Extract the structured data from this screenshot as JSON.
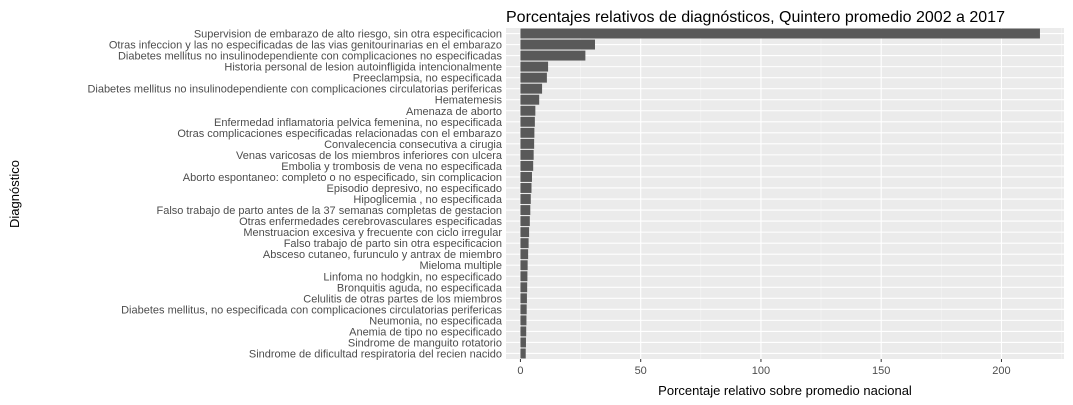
{
  "chart_data": {
    "type": "bar",
    "orientation": "horizontal",
    "title": "Porcentajes relativos de diagnósticos, Quintero promedio 2002 a 2017",
    "xlabel": "Porcentaje relativo sobre promedio nacional",
    "ylabel": "Diagnóstico",
    "xlim": [
      -6,
      226
    ],
    "xticks": [
      0,
      50,
      100,
      150,
      200
    ],
    "grid": true,
    "colors": {
      "bar": "#595959",
      "panel": "#ebebeb",
      "grid_major": "#ffffff",
      "grid_minor": "#f5f5f5"
    },
    "categories": [
      "Supervision de embarazo de alto riesgo, sin otra especificacion",
      "Otras infeccion y las no especificadas de las vias genitourinarias en el embarazo",
      "Diabetes mellitus no insulinodependiente con complicaciones no especificadas",
      "Historia personal de lesion autoinfligida intencionalmente",
      "Preeclampsia, no especificada",
      "Diabetes mellitus no insulinodependiente con complicaciones circulatorias perifericas",
      "Hematemesis",
      "Amenaza de aborto",
      "Enfermedad inflamatoria pelvica femenina, no especificada",
      "Otras complicaciones especificadas relacionadas con el embarazo",
      "Convalecencia consecutiva a cirugia",
      "Venas varicosas de los miembros inferiores con ulcera",
      "Embolia y trombosis de vena no especificada",
      "Aborto espontaneo: completo o no especificado, sin complicacion",
      "Episodio depresivo, no especificado",
      "Hipoglicemia , no especificada",
      "Falso trabajo de parto antes de la 37 semanas completas de gestacion",
      "Otras enfermedades cerebrovasculares especificadas",
      "Menstruacion excesiva y frecuente con ciclo irregular",
      "Falso trabajo de parto sin otra especificacion",
      "Absceso cutaneo, furunculo y antrax de miembro",
      "Mieloma multiple",
      "Linfoma no hodgkin, no especificado",
      "Bronquitis aguda, no especificada",
      "Celulitis de otras partes de los miembros",
      "Diabetes mellitus, no especificada con complicaciones circulatorias perifericas",
      "Neumonia, no especificada",
      "Anemia de tipo no especificado",
      "Sindrome de manguito rotatorio",
      "Sindrome de dificultad respiratoria del recien nacido"
    ],
    "values": [
      216,
      31,
      27,
      11.5,
      11,
      9,
      7.8,
      6.2,
      6,
      5.8,
      5.7,
      5.5,
      5.3,
      4.8,
      4.6,
      4.3,
      4.1,
      3.9,
      3.6,
      3.4,
      3.2,
      3.0,
      2.9,
      2.8,
      2.7,
      2.6,
      2.5,
      2.4,
      2.3,
      2.2
    ]
  }
}
